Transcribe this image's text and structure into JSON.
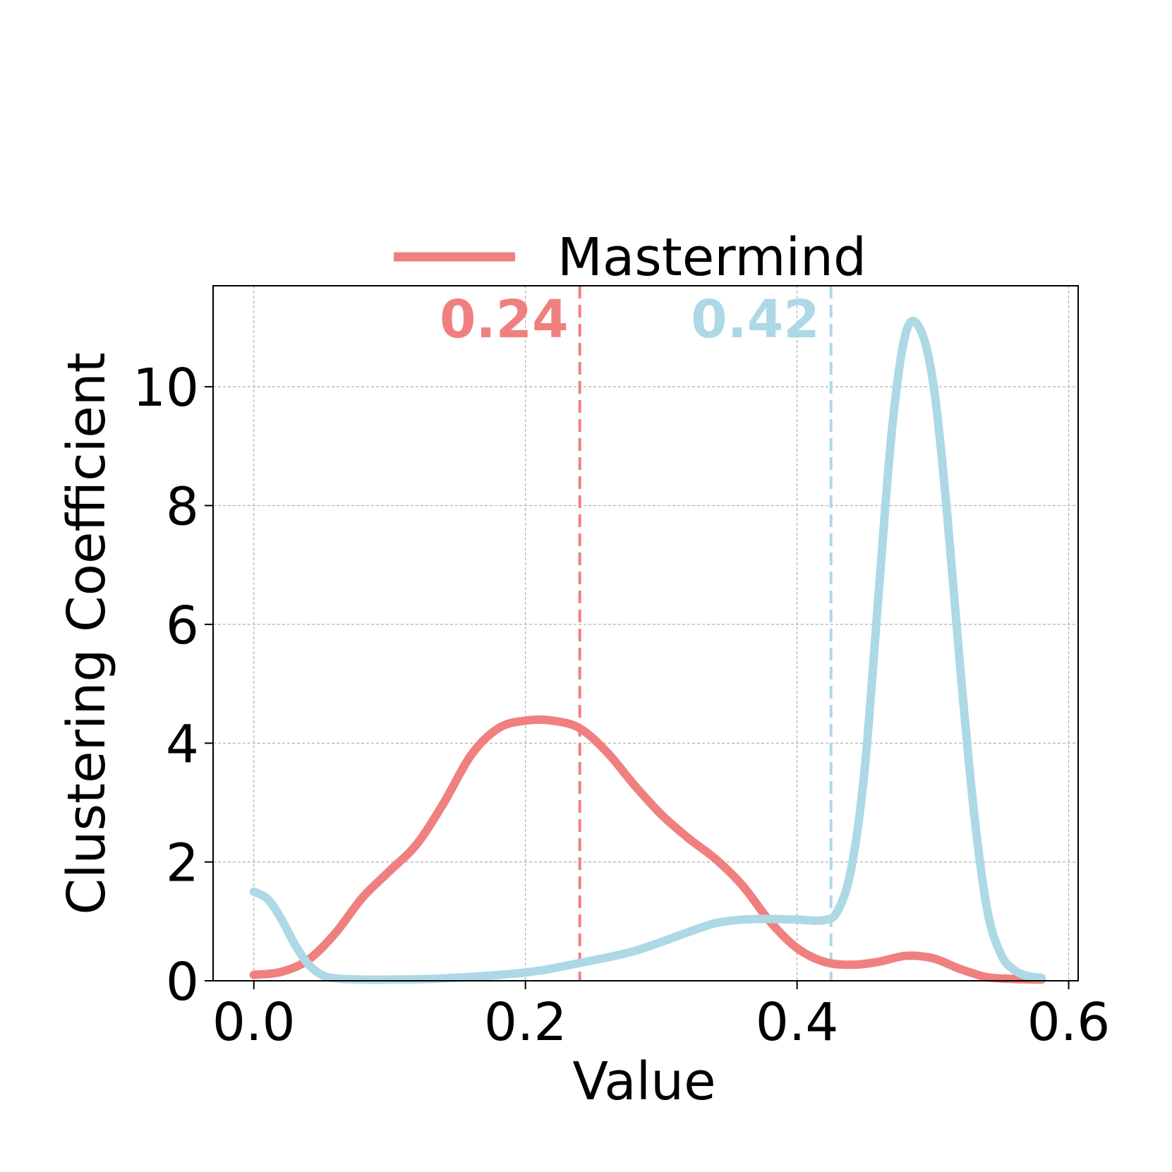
{
  "chart_data": {
    "type": "line",
    "xlabel": "Value",
    "ylabel": "Clustering Coefficient",
    "xlim": [
      -0.03,
      0.607
    ],
    "ylim": [
      0,
      11.7
    ],
    "xticks": [
      "0.0",
      "0.2",
      "0.4",
      "0.6"
    ],
    "xtick_values": [
      0.0,
      0.2,
      0.4,
      0.6
    ],
    "yticks": [
      "0",
      "2",
      "4",
      "6",
      "8",
      "10"
    ],
    "ytick_values": [
      0,
      2,
      4,
      6,
      8,
      10
    ],
    "grid": true,
    "legend": {
      "placement": "top-center",
      "entries": [
        "Mastermind"
      ]
    },
    "series": [
      {
        "name": "Mastermind",
        "color": "#F08080",
        "x": [
          0.0,
          0.02,
          0.04,
          0.06,
          0.08,
          0.1,
          0.12,
          0.14,
          0.16,
          0.18,
          0.2,
          0.22,
          0.24,
          0.26,
          0.28,
          0.3,
          0.32,
          0.34,
          0.36,
          0.38,
          0.4,
          0.42,
          0.44,
          0.46,
          0.48,
          0.5,
          0.52,
          0.54,
          0.56,
          0.58
        ],
        "y": [
          0.1,
          0.15,
          0.35,
          0.8,
          1.4,
          1.85,
          2.3,
          3.0,
          3.8,
          4.25,
          4.38,
          4.38,
          4.25,
          3.85,
          3.3,
          2.8,
          2.4,
          2.05,
          1.6,
          1.0,
          0.55,
          0.32,
          0.27,
          0.32,
          0.42,
          0.38,
          0.2,
          0.06,
          0.03,
          0.02
        ],
        "median": 0.24,
        "median_label": "0.24"
      },
      {
        "color": "#ADD8E6",
        "x": [
          0.0,
          0.01,
          0.02,
          0.03,
          0.04,
          0.05,
          0.06,
          0.08,
          0.1,
          0.14,
          0.2,
          0.24,
          0.28,
          0.32,
          0.34,
          0.36,
          0.38,
          0.4,
          0.42,
          0.43,
          0.44,
          0.45,
          0.46,
          0.47,
          0.48,
          0.49,
          0.5,
          0.51,
          0.52,
          0.53,
          0.54,
          0.55,
          0.56,
          0.57,
          0.58
        ],
        "y": [
          1.5,
          1.38,
          1.05,
          0.62,
          0.28,
          0.1,
          0.04,
          0.02,
          0.02,
          0.04,
          0.14,
          0.3,
          0.5,
          0.82,
          0.97,
          1.03,
          1.04,
          1.03,
          1.02,
          1.18,
          1.9,
          3.6,
          6.5,
          9.3,
          10.9,
          11.0,
          10.1,
          8.0,
          5.3,
          2.9,
          1.2,
          0.45,
          0.18,
          0.08,
          0.05
        ],
        "median": 0.425,
        "median_label": "0.42"
      }
    ]
  }
}
